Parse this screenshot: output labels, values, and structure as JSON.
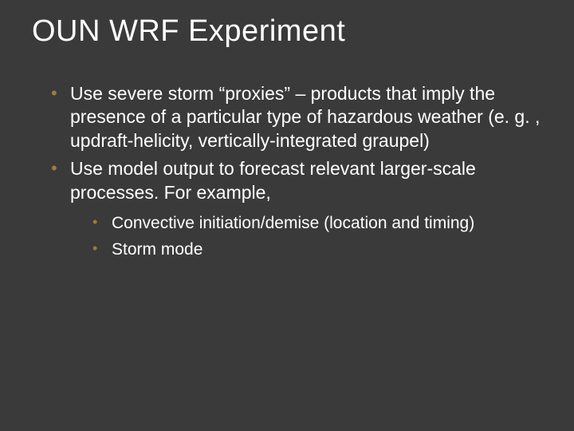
{
  "slide": {
    "title": "OUN WRF Experiment",
    "background_color": "#3a3a3a",
    "text_color": "#ffffff",
    "bullet_color": "#9a7b3f",
    "title_fontsize": 38,
    "body_fontsize": 23,
    "sub_fontsize": 21,
    "bullets": [
      {
        "text": "Use severe storm “proxies” – products that imply the presence of a particular type of hazardous weather (e. g. , updraft-helicity, vertically-integrated graupel)"
      },
      {
        "text": "Use model output to forecast relevant larger-scale processes. For example,",
        "sub": [
          "Convective initiation/demise (location and timing)",
          "Storm mode"
        ]
      }
    ]
  }
}
